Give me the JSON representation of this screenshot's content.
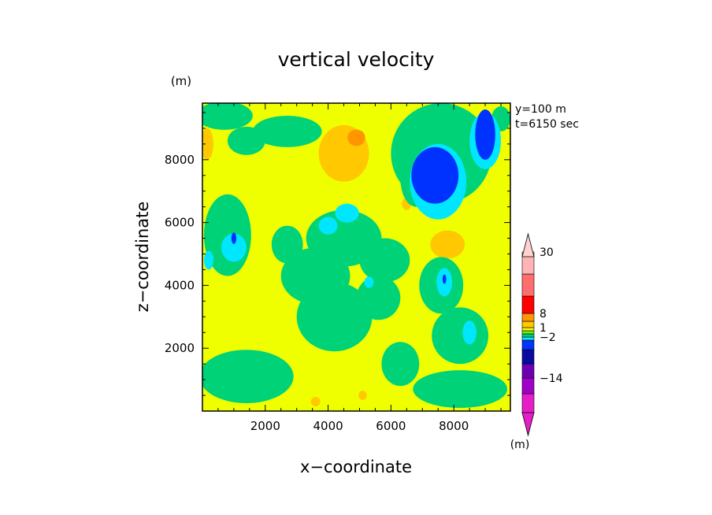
{
  "chart_data": {
    "type": "heatmap",
    "title": "vertical velocity",
    "xlabel": "x−coordinate",
    "ylabel": "z−coordinate",
    "x_unit": "(m)",
    "y_unit": "(m)",
    "info_line1": "y=100 m",
    "info_line2": "t=6150 sec",
    "xlim": [
      0,
      9800
    ],
    "ylim": [
      0,
      9800
    ],
    "x_ticks": [
      {
        "value": 2000,
        "label": "2000"
      },
      {
        "value": 4000,
        "label": "4000"
      },
      {
        "value": 6000,
        "label": "6000"
      },
      {
        "value": 8000,
        "label": "8000"
      }
    ],
    "y_ticks": [
      {
        "value": 2000,
        "label": "2000"
      },
      {
        "value": 4000,
        "label": "4000"
      },
      {
        "value": 6000,
        "label": "6000"
      },
      {
        "value": 8000,
        "label": "8000"
      }
    ],
    "colorbar": {
      "unit": "(m)",
      "levels": [
        {
          "color": "#e61ec8"
        },
        {
          "color": "#a000c8"
        },
        {
          "color": "#6e00b4"
        },
        {
          "color": "#0a0aa0"
        },
        {
          "color": "#0032ff"
        },
        {
          "color": "#00e6ff"
        },
        {
          "color": "#00d278"
        },
        {
          "color": "#7ae61e"
        },
        {
          "color": "#f0ff00"
        },
        {
          "color": "#ffc800"
        },
        {
          "color": "#ff9600"
        },
        {
          "color": "#ff0000"
        },
        {
          "color": "#ff6e6e"
        },
        {
          "color": "#ffb4b4"
        },
        {
          "color": "#ffd2d2"
        }
      ],
      "labels": [
        {
          "text": "30",
          "level_boundary": 14
        },
        {
          "text": "8",
          "level_boundary": 11
        },
        {
          "text": "1",
          "level_boundary": 9
        },
        {
          "text": "−2",
          "level_boundary": 6
        },
        {
          "text": "−14",
          "level_boundary": 2
        }
      ]
    },
    "field": {
      "background_color": "#f0ff00",
      "regions": [
        {
          "kind": "positive",
          "color": "#ffc800",
          "x": 4500,
          "z": 8200,
          "rx": 800,
          "rz": 900
        },
        {
          "kind": "positive",
          "color": "#ff9600",
          "x": 4900,
          "z": 8700,
          "rx": 280,
          "rz": 260
        },
        {
          "kind": "positive",
          "color": "#ffc800",
          "x": 7800,
          "z": 5300,
          "rx": 550,
          "rz": 450
        },
        {
          "kind": "positive",
          "color": "#ffc800",
          "x": 150,
          "z": 8500,
          "rx": 200,
          "rz": 500
        },
        {
          "kind": "positive",
          "color": "#ffc800",
          "x": 6500,
          "z": 6600,
          "rx": 150,
          "rz": 200
        },
        {
          "kind": "positive",
          "color": "#ffc800",
          "x": 5100,
          "z": 500,
          "rx": 130,
          "rz": 150
        },
        {
          "kind": "positive",
          "color": "#ffc800",
          "x": 3600,
          "z": 300,
          "rx": 150,
          "rz": 150
        },
        {
          "kind": "green",
          "color": "#00d278",
          "x": 700,
          "z": 9400,
          "rx": 900,
          "rz": 450
        },
        {
          "kind": "green",
          "color": "#00d278",
          "x": 1400,
          "z": 8600,
          "rx": 600,
          "rz": 450
        },
        {
          "kind": "green",
          "color": "#00d278",
          "x": 2700,
          "z": 8900,
          "rx": 1100,
          "rz": 500
        },
        {
          "kind": "green",
          "color": "#00d278",
          "x": 7600,
          "z": 8200,
          "rx": 1600,
          "rz": 1600
        },
        {
          "kind": "green",
          "color": "#00d278",
          "x": 6800,
          "z": 7400,
          "rx": 500,
          "rz": 900
        },
        {
          "kind": "green",
          "color": "#00d278",
          "x": 9500,
          "z": 9300,
          "rx": 300,
          "rz": 400
        },
        {
          "kind": "green",
          "color": "#00d278",
          "x": 800,
          "z": 5600,
          "rx": 750,
          "rz": 1300
        },
        {
          "kind": "green",
          "color": "#00d278",
          "x": 4500,
          "z": 5500,
          "rx": 1200,
          "rz": 900
        },
        {
          "kind": "green",
          "color": "#00d278",
          "x": 5800,
          "z": 4800,
          "rx": 800,
          "rz": 700
        },
        {
          "kind": "green",
          "color": "#00d278",
          "x": 3600,
          "z": 4300,
          "rx": 1100,
          "rz": 900
        },
        {
          "kind": "green",
          "color": "#00d278",
          "x": 4200,
          "z": 3000,
          "rx": 1200,
          "rz": 1100
        },
        {
          "kind": "green",
          "color": "#00d278",
          "x": 5600,
          "z": 3600,
          "rx": 700,
          "rz": 700
        },
        {
          "kind": "green",
          "color": "#00d278",
          "x": 7600,
          "z": 4000,
          "rx": 700,
          "rz": 900
        },
        {
          "kind": "green",
          "color": "#00d278",
          "x": 8200,
          "z": 2400,
          "rx": 900,
          "rz": 900
        },
        {
          "kind": "green",
          "color": "#00d278",
          "x": 1400,
          "z": 1100,
          "rx": 1500,
          "rz": 850
        },
        {
          "kind": "green",
          "color": "#00d278",
          "x": 8200,
          "z": 700,
          "rx": 1500,
          "rz": 600
        },
        {
          "kind": "green",
          "color": "#00d278",
          "x": 6300,
          "z": 1500,
          "rx": 600,
          "rz": 700
        },
        {
          "kind": "green",
          "color": "#00d278",
          "x": 2700,
          "z": 5300,
          "rx": 500,
          "rz": 600
        },
        {
          "kind": "cyan",
          "color": "#00e6ff",
          "x": 7500,
          "z": 7300,
          "rx": 900,
          "rz": 1200
        },
        {
          "kind": "cyan",
          "color": "#00e6ff",
          "x": 9000,
          "z": 8600,
          "rx": 500,
          "rz": 900
        },
        {
          "kind": "cyan",
          "color": "#00e6ff",
          "x": 1000,
          "z": 5200,
          "rx": 400,
          "rz": 450
        },
        {
          "kind": "cyan",
          "color": "#00e6ff",
          "x": 4600,
          "z": 6300,
          "rx": 380,
          "rz": 300
        },
        {
          "kind": "cyan",
          "color": "#00e6ff",
          "x": 4000,
          "z": 5900,
          "rx": 300,
          "rz": 280
        },
        {
          "kind": "cyan",
          "color": "#00e6ff",
          "x": 7700,
          "z": 4100,
          "rx": 250,
          "rz": 450
        },
        {
          "kind": "cyan",
          "color": "#00e6ff",
          "x": 8500,
          "z": 2500,
          "rx": 220,
          "rz": 380
        },
        {
          "kind": "cyan",
          "color": "#00e6ff",
          "x": 5300,
          "z": 4100,
          "rx": 150,
          "rz": 180
        },
        {
          "kind": "cyan",
          "color": "#00e6ff",
          "x": 200,
          "z": 4800,
          "rx": 150,
          "rz": 300
        },
        {
          "kind": "blue",
          "color": "#0032ff",
          "x": 7400,
          "z": 7500,
          "rx": 750,
          "rz": 900
        },
        {
          "kind": "blue",
          "color": "#0032ff",
          "x": 9000,
          "z": 8800,
          "rx": 320,
          "rz": 800
        },
        {
          "kind": "blue",
          "color": "#0032ff",
          "x": 1000,
          "z": 5500,
          "rx": 80,
          "rz": 180
        },
        {
          "kind": "blue",
          "color": "#0032ff",
          "x": 7700,
          "z": 4200,
          "rx": 60,
          "rz": 150
        }
      ]
    }
  }
}
